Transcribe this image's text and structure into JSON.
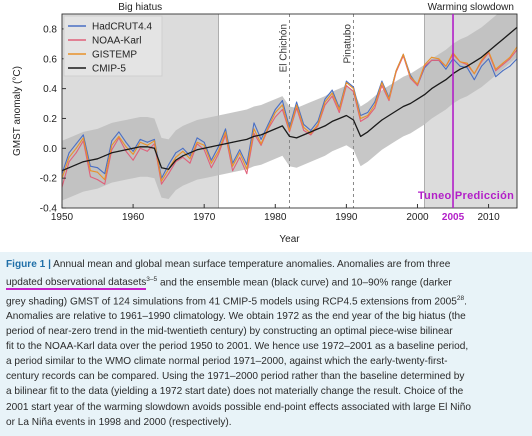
{
  "chart_data": {
    "type": "line",
    "xlabel": "Year",
    "ylabel": "GMST anomaly (°C)",
    "xlim": [
      1950,
      2014
    ],
    "ylim": [
      -0.4,
      0.9
    ],
    "xticks": [
      1950,
      1960,
      1970,
      1980,
      1990,
      2000,
      2010
    ],
    "yticks": [
      -0.4,
      -0.2,
      0.0,
      0.2,
      0.4,
      0.6,
      0.8
    ],
    "legend": "top-left",
    "x": [
      1950,
      1951,
      1952,
      1953,
      1954,
      1955,
      1956,
      1957,
      1958,
      1959,
      1960,
      1961,
      1962,
      1963,
      1964,
      1965,
      1966,
      1967,
      1968,
      1969,
      1970,
      1971,
      1972,
      1973,
      1974,
      1975,
      1976,
      1977,
      1978,
      1979,
      1980,
      1981,
      1982,
      1983,
      1984,
      1985,
      1986,
      1987,
      1988,
      1989,
      1990,
      1991,
      1992,
      1993,
      1994,
      1995,
      1996,
      1997,
      1998,
      1999,
      2000,
      2001,
      2002,
      2003,
      2004,
      2005,
      2006,
      2007,
      2008,
      2009,
      2010,
      2011,
      2012,
      2013,
      2014
    ],
    "series": [
      {
        "name": "HadCRUT4.4",
        "color": "#4a6fc4",
        "values": [
          -0.17,
          -0.03,
          0.03,
          0.09,
          -0.12,
          -0.13,
          -0.17,
          0.05,
          0.11,
          0.04,
          -0.02,
          0.06,
          0.04,
          0.06,
          -0.2,
          -0.11,
          -0.03,
          0.0,
          -0.05,
          0.07,
          0.04,
          -0.08,
          0.01,
          0.13,
          -0.1,
          -0.01,
          -0.11,
          0.17,
          0.06,
          0.16,
          0.26,
          0.32,
          0.14,
          0.31,
          0.16,
          0.12,
          0.18,
          0.33,
          0.39,
          0.27,
          0.45,
          0.41,
          0.22,
          0.24,
          0.31,
          0.45,
          0.34,
          0.52,
          0.63,
          0.49,
          0.42,
          0.54,
          0.59,
          0.59,
          0.53,
          0.6,
          0.55,
          0.54,
          0.46,
          0.55,
          0.6,
          0.48,
          0.52,
          0.55,
          0.6
        ]
      },
      {
        "name": "NOAA-Karl",
        "color": "#e0607a",
        "values": [
          -0.26,
          -0.09,
          -0.03,
          0.05,
          -0.19,
          -0.21,
          -0.24,
          -0.01,
          0.07,
          -0.02,
          -0.08,
          0.0,
          -0.02,
          0.03,
          -0.24,
          -0.17,
          -0.09,
          -0.06,
          -0.1,
          0.03,
          -0.01,
          -0.13,
          -0.04,
          0.09,
          -0.15,
          -0.06,
          -0.17,
          0.1,
          0.02,
          0.13,
          0.21,
          0.26,
          0.11,
          0.27,
          0.12,
          0.09,
          0.15,
          0.29,
          0.35,
          0.24,
          0.42,
          0.38,
          0.18,
          0.21,
          0.27,
          0.42,
          0.32,
          0.51,
          0.62,
          0.47,
          0.42,
          0.55,
          0.59,
          0.59,
          0.55,
          0.63,
          0.58,
          0.56,
          0.5,
          0.58,
          0.64,
          0.52,
          0.56,
          0.6,
          0.66
        ]
      },
      {
        "name": "GISTEMP",
        "color": "#e8922a",
        "values": [
          -0.2,
          -0.06,
          0.0,
          0.07,
          -0.15,
          -0.16,
          -0.21,
          0.02,
          0.08,
          0.01,
          -0.04,
          0.04,
          0.02,
          0.05,
          -0.22,
          -0.14,
          -0.06,
          -0.02,
          -0.07,
          0.04,
          0.02,
          -0.1,
          -0.02,
          0.11,
          -0.12,
          -0.03,
          -0.14,
          0.13,
          0.03,
          0.14,
          0.24,
          0.29,
          0.12,
          0.29,
          0.14,
          0.1,
          0.16,
          0.31,
          0.37,
          0.26,
          0.44,
          0.4,
          0.2,
          0.22,
          0.29,
          0.44,
          0.33,
          0.52,
          0.63,
          0.48,
          0.43,
          0.56,
          0.61,
          0.6,
          0.55,
          0.64,
          0.58,
          0.57,
          0.5,
          0.59,
          0.65,
          0.53,
          0.57,
          0.61,
          0.68
        ]
      },
      {
        "name": "CMIP-5",
        "color": "#1a1a1a",
        "values": [
          -0.15,
          -0.13,
          -0.11,
          -0.09,
          -0.08,
          -0.07,
          -0.05,
          -0.03,
          -0.02,
          -0.01,
          0.0,
          0.01,
          0.01,
          0.0,
          -0.13,
          -0.14,
          -0.08,
          -0.05,
          -0.03,
          -0.01,
          0.0,
          0.01,
          0.02,
          0.03,
          0.04,
          0.05,
          0.06,
          0.08,
          0.09,
          0.11,
          0.13,
          0.15,
          0.08,
          0.07,
          0.09,
          0.11,
          0.13,
          0.15,
          0.18,
          0.2,
          0.22,
          0.19,
          0.08,
          0.11,
          0.15,
          0.19,
          0.22,
          0.25,
          0.28,
          0.3,
          0.33,
          0.36,
          0.4,
          0.43,
          0.46,
          0.5,
          0.53,
          0.55,
          0.58,
          0.61,
          0.65,
          0.69,
          0.73,
          0.77,
          0.81
        ]
      }
    ],
    "band_10_90": {
      "lower": [
        -0.35,
        -0.33,
        -0.31,
        -0.29,
        -0.28,
        -0.27,
        -0.25,
        -0.23,
        -0.22,
        -0.21,
        -0.2,
        -0.19,
        -0.19,
        -0.2,
        -0.33,
        -0.34,
        -0.28,
        -0.25,
        -0.23,
        -0.21,
        -0.2,
        -0.19,
        -0.18,
        -0.17,
        -0.16,
        -0.15,
        -0.14,
        -0.12,
        -0.11,
        -0.09,
        -0.07,
        -0.05,
        -0.12,
        -0.13,
        -0.11,
        -0.09,
        -0.07,
        -0.05,
        -0.02,
        0.0,
        0.02,
        -0.01,
        -0.12,
        -0.09,
        -0.05,
        -0.01,
        0.02,
        0.05,
        0.08,
        0.1,
        0.13,
        0.16,
        0.2,
        0.23,
        0.26,
        0.3,
        0.33,
        0.35,
        0.38,
        0.41,
        0.45,
        0.49,
        0.53,
        0.57,
        0.61
      ],
      "upper": [
        0.05,
        0.07,
        0.09,
        0.11,
        0.12,
        0.13,
        0.15,
        0.17,
        0.18,
        0.19,
        0.2,
        0.21,
        0.21,
        0.2,
        0.07,
        0.06,
        0.12,
        0.15,
        0.17,
        0.19,
        0.2,
        0.21,
        0.22,
        0.23,
        0.24,
        0.25,
        0.26,
        0.28,
        0.29,
        0.31,
        0.33,
        0.35,
        0.28,
        0.27,
        0.29,
        0.31,
        0.33,
        0.35,
        0.38,
        0.4,
        0.42,
        0.39,
        0.28,
        0.31,
        0.35,
        0.39,
        0.42,
        0.45,
        0.48,
        0.5,
        0.53,
        0.56,
        0.6,
        0.63,
        0.66,
        0.7,
        0.73,
        0.75,
        0.78,
        0.81,
        0.85,
        0.89,
        0.93,
        0.97,
        1.01
      ]
    },
    "shaded_periods": [
      {
        "label": "Big hiatus",
        "from": 1950,
        "to": 1972
      },
      {
        "label": "Warming slowdown",
        "from": 2001,
        "to": 2014
      }
    ],
    "volcanoes": [
      {
        "label": "El Chichón",
        "year": 1982
      },
      {
        "label": "Pinatubo",
        "year": 1991
      }
    ],
    "annotation": {
      "text": "Tuneo Predicción",
      "marker_year": 2005,
      "marker_label": "2005",
      "color": "#b21fc8"
    }
  },
  "caption": {
    "fig_label": "Figure 1 |",
    "lines": [
      " Annual mean and global mean surface temperature anomalies. Anomalies are from three",
      " and the ensemble mean (black curve) and 10–90% range (darker",
      "grey shading) GMST of 124 simulations from 41 CMIP-5 models using RCP4.5 extensions from 2005",
      "Anomalies are relative to 1961–1990 climatology. We obtain 1972 as the end year of the big hiatus (the",
      "period of near-zero trend in the mid-twentieth century) by constructing an optimal piece-wise bilinear",
      "fit to the NOAA-Karl data over the period 1950 to 2001. We hence use 1972–2001 as a baseline period,",
      "a period similar to the WMO climate normal period 1971–2000, against which the early-twenty-first-",
      "century records can be compared. Using the 1971–2000 period rather than the baseline determined by",
      "a bilinear fit to the data (yielding a 1972 start date) does not materially change the result. Choice of the",
      "2001 start year of the warming slowdown avoids possible end-point effects associated with large El Niño",
      "or La Niña events in 1998 and 2000 (respectively)."
    ],
    "underlined": "updated observational datasets",
    "ref1": "3–5",
    "ref2": "28",
    "dot": "."
  }
}
